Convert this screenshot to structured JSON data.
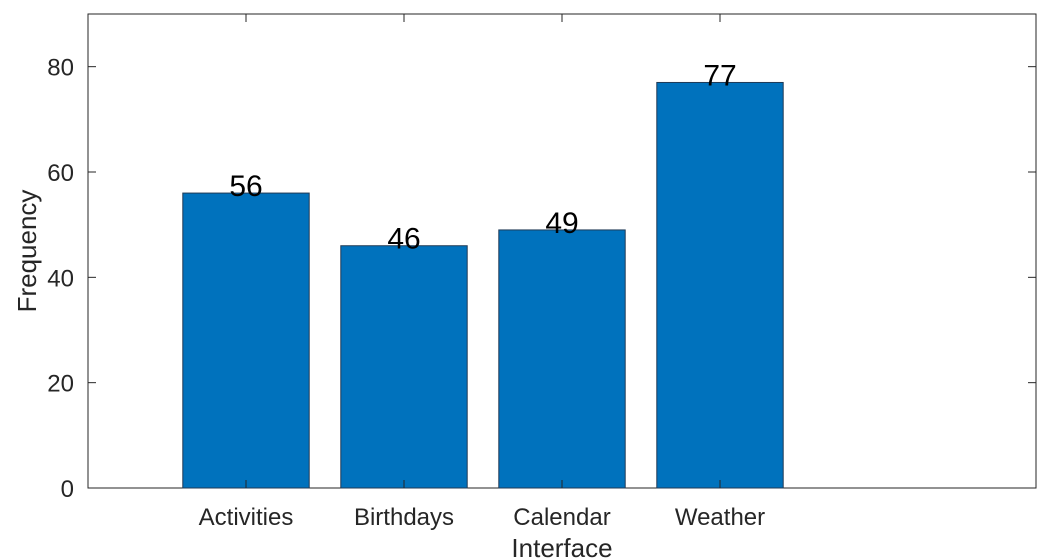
{
  "chart_data": {
    "type": "bar",
    "title": "",
    "xlabel": "Interface",
    "ylabel": "Frequency",
    "categories": [
      "Activities",
      "Birthdays",
      "Calendar",
      "Weather"
    ],
    "values": [
      56,
      46,
      49,
      77
    ],
    "data_labels": [
      "56",
      "46",
      "49",
      "77"
    ],
    "ylim": [
      0,
      90
    ],
    "yticks": [
      0,
      20,
      40,
      60,
      80
    ],
    "ytick_labels": [
      "0",
      "20",
      "40",
      "60",
      "80"
    ],
    "grid": false,
    "legend": "none",
    "bar_color": "#0072BD",
    "bar_edge_color": "#1f3a56",
    "axis_color": "#262626"
  }
}
